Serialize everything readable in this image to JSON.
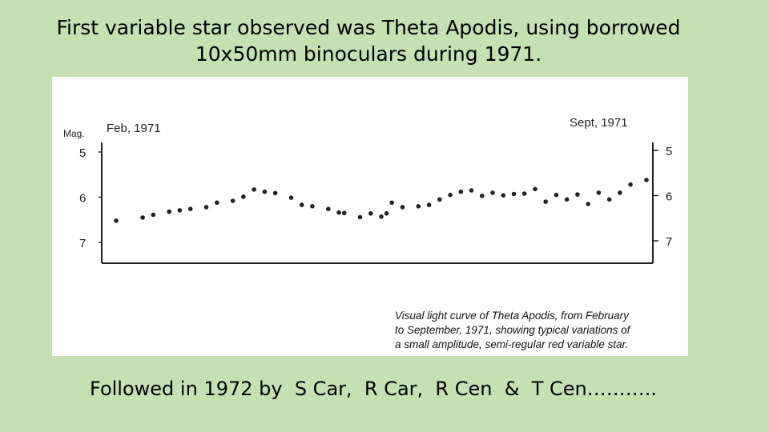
{
  "slide": {
    "title_line1": "First variable star observed was Theta Apodis, using borrowed",
    "title_line2": "10x50mm binoculars during 1971.",
    "footer": "Followed in 1972 by  S Car,  R Car,  R Cen  &  T Cen……….."
  },
  "chart_data": {
    "type": "scatter",
    "ylabel": "Mag.",
    "start_label": "Feb, 1971",
    "end_label": "Sept, 1971",
    "yticks": [
      "5",
      "6",
      "7"
    ],
    "ylim": [
      7.5,
      4.6
    ],
    "y_inverted": true,
    "grid": false,
    "caption": [
      "Visual light curve of Theta Apodis, from February",
      "to September, 1971, showing typical variations of",
      "a small amplitude, semi-regular red variable star."
    ],
    "series": [
      {
        "x": [
          0.0,
          0.05,
          0.07,
          0.1,
          0.12,
          0.14,
          0.17,
          0.19,
          0.22,
          0.24,
          0.26,
          0.28,
          0.3,
          0.33,
          0.35,
          0.37,
          0.4,
          0.42,
          0.43,
          0.46,
          0.48,
          0.5,
          0.51,
          0.52,
          0.54,
          0.57,
          0.59,
          0.61,
          0.63,
          0.65,
          0.67,
          0.69,
          0.71,
          0.73,
          0.75,
          0.77,
          0.79,
          0.81,
          0.83,
          0.85,
          0.87,
          0.89,
          0.91,
          0.93,
          0.95,
          0.97,
          1.0
        ],
        "values": [
          6.52,
          6.45,
          6.39,
          6.32,
          6.29,
          6.26,
          6.22,
          6.12,
          6.08,
          5.99,
          5.83,
          5.88,
          5.91,
          6.01,
          6.17,
          6.2,
          6.26,
          6.34,
          6.35,
          6.44,
          6.36,
          6.43,
          6.36,
          6.12,
          6.22,
          6.2,
          6.17,
          6.05,
          5.95,
          5.88,
          5.85,
          5.97,
          5.9,
          5.96,
          5.93,
          5.92,
          5.82,
          6.1,
          5.95,
          6.05,
          5.94,
          6.15,
          5.9,
          6.05,
          5.9,
          5.72,
          5.62
        ]
      }
    ]
  }
}
